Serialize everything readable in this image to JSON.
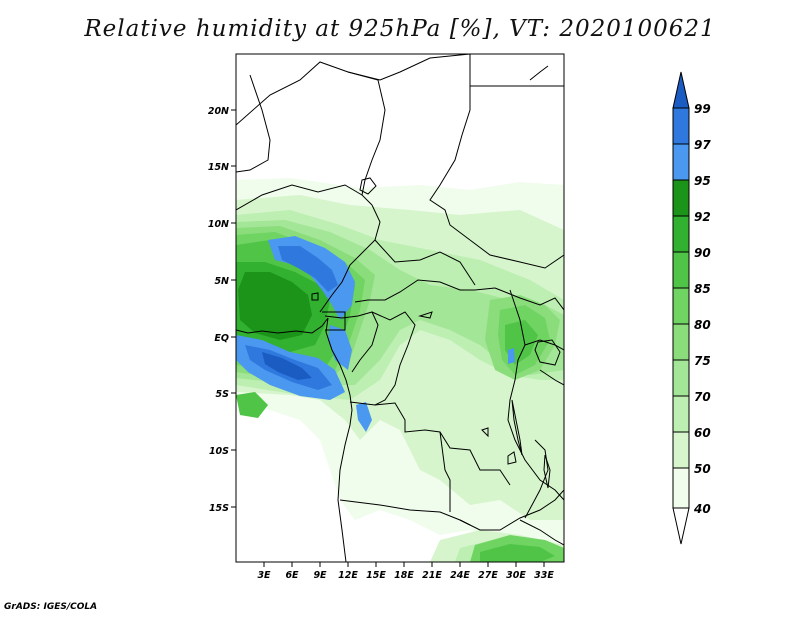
{
  "title": "Relative humidity at 925hPa [%], VT: 2020100621",
  "credit": "GrADS: IGES/COLA",
  "map": {
    "lat_ticks": [
      "20N",
      "15N",
      "10N",
      "5N",
      "EQ",
      "5S",
      "10S",
      "15S"
    ],
    "lon_ticks": [
      "3E",
      "6E",
      "9E",
      "12E",
      "15E",
      "18E",
      "21E",
      "24E",
      "27E",
      "30E",
      "33E"
    ]
  },
  "colorbar": {
    "labels": [
      "99",
      "97",
      "95",
      "92",
      "90",
      "85",
      "80",
      "75",
      "70",
      "60",
      "50",
      "40"
    ],
    "colors": {
      "c40_50": "#f0fcec",
      "c50_60": "#d6f5cc",
      "c60_70": "#bdeeb2",
      "c70_75": "#a4e697",
      "c75_80": "#8bdd7c",
      "c80_85": "#6fd462",
      "c85_90": "#4fc447",
      "c90_92": "#32b02f",
      "c92_95": "#1c9419",
      "c95_97": "#4b98f0",
      "c97_99": "#2f78dd",
      "c99": "#1a5cc2"
    }
  }
}
